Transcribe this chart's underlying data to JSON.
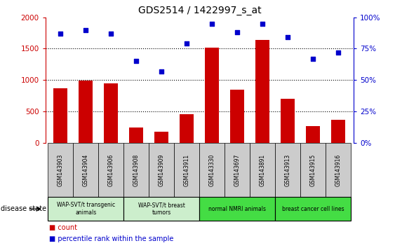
{
  "title": "GDS2514 / 1422997_s_at",
  "samples": [
    "GSM143903",
    "GSM143904",
    "GSM143906",
    "GSM143908",
    "GSM143909",
    "GSM143911",
    "GSM143330",
    "GSM143697",
    "GSM143891",
    "GSM143913",
    "GSM143915",
    "GSM143916"
  ],
  "counts": [
    870,
    990,
    950,
    240,
    175,
    450,
    1520,
    840,
    1640,
    700,
    260,
    365
  ],
  "percentiles": [
    87,
    90,
    87,
    65,
    57,
    79,
    95,
    88,
    95,
    84,
    67,
    72
  ],
  "group_defs": [
    {
      "label": "WAP-SVT/t transgenic\nanimals",
      "start": 0,
      "end": 2,
      "color": "#CCEECC"
    },
    {
      "label": "WAP-SVT/t breast\ntumors",
      "start": 3,
      "end": 5,
      "color": "#CCEECC"
    },
    {
      "label": "normal NMRI animals",
      "start": 6,
      "end": 8,
      "color": "#44DD44"
    },
    {
      "label": "breast cancer cell lines",
      "start": 9,
      "end": 11,
      "color": "#44DD44"
    }
  ],
  "bar_color": "#CC0000",
  "dot_color": "#0000CC",
  "left_ylim": [
    0,
    2000
  ],
  "right_ylim": [
    0,
    100
  ],
  "left_yticks": [
    0,
    500,
    1000,
    1500,
    2000
  ],
  "right_yticks": [
    0,
    25,
    50,
    75,
    100
  ],
  "right_yticklabels": [
    "0%",
    "25%",
    "50%",
    "75%",
    "100%"
  ],
  "bg_color": "#FFFFFF",
  "sample_bg_color": "#CCCCCC",
  "tick_label_color_left": "#CC0000",
  "tick_label_color_right": "#0000CC",
  "disease_state_label": "disease state",
  "legend_count_label": "count",
  "legend_pct_label": "percentile rank within the sample"
}
